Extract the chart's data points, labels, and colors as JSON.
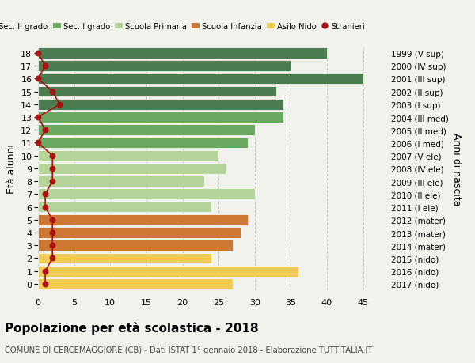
{
  "ages": [
    18,
    17,
    16,
    15,
    14,
    13,
    12,
    11,
    10,
    9,
    8,
    7,
    6,
    5,
    4,
    3,
    2,
    1,
    0
  ],
  "years": [
    "1999 (V sup)",
    "2000 (IV sup)",
    "2001 (III sup)",
    "2002 (II sup)",
    "2003 (I sup)",
    "2004 (III med)",
    "2005 (II med)",
    "2006 (I med)",
    "2007 (V ele)",
    "2008 (IV ele)",
    "2009 (III ele)",
    "2010 (II ele)",
    "2011 (I ele)",
    "2012 (mater)",
    "2013 (mater)",
    "2014 (mater)",
    "2015 (nido)",
    "2016 (nido)",
    "2017 (nido)"
  ],
  "values": [
    40,
    35,
    45,
    33,
    34,
    34,
    30,
    29,
    25,
    26,
    23,
    30,
    24,
    29,
    28,
    27,
    24,
    36,
    27
  ],
  "stranieri": [
    0,
    1,
    0,
    2,
    3,
    0,
    1,
    0,
    2,
    2,
    2,
    1,
    1,
    2,
    2,
    2,
    2,
    1,
    1
  ],
  "bar_colors": [
    "#4a7c50",
    "#4a7c50",
    "#4a7c50",
    "#4a7c50",
    "#4a7c50",
    "#6aaa60",
    "#6aaa60",
    "#6aaa60",
    "#b5d49a",
    "#b5d49a",
    "#b5d49a",
    "#b5d49a",
    "#b5d49a",
    "#cc7733",
    "#cc7733",
    "#cc7733",
    "#f0cc55",
    "#f0cc55",
    "#f0cc55"
  ],
  "legend_labels": [
    "Sec. II grado",
    "Sec. I grado",
    "Scuola Primaria",
    "Scuola Infanzia",
    "Asilo Nido",
    "Stranieri"
  ],
  "legend_colors": [
    "#4a7c50",
    "#6aaa60",
    "#b5d49a",
    "#cc7733",
    "#f0cc55",
    "#aa1111"
  ],
  "stranieri_color": "#aa1111",
  "ylabel_left": "Età alunni",
  "ylabel_right": "Anni di nascita",
  "title": "Popolazione per età scolastica - 2018",
  "subtitle": "COMUNE DI CERCEMAGGIORE (CB) - Dati ISTAT 1° gennaio 2018 - Elaborazione TUTTITALIA.IT",
  "xlim": [
    0,
    48
  ],
  "xticks": [
    0,
    5,
    10,
    15,
    20,
    25,
    30,
    35,
    40,
    45
  ],
  "background_color": "#f2f2ec",
  "grid_color": "#cccccc"
}
